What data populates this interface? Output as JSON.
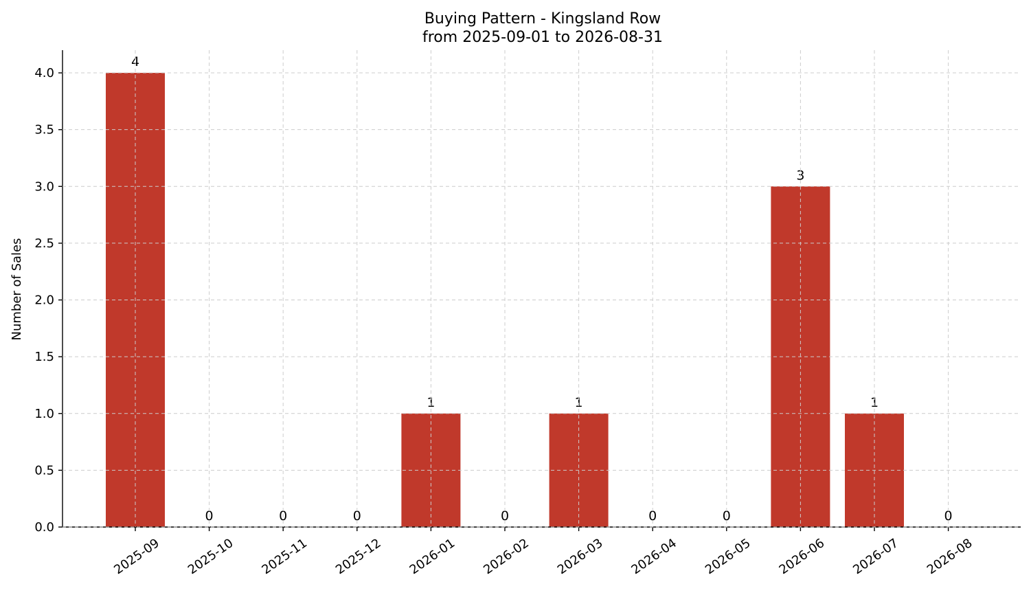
{
  "chart_data": {
    "type": "bar",
    "title": "Buying Pattern - Kingsland Row",
    "subtitle": "from 2025-09-01 to 2026-08-31",
    "ylabel": "Number of Sales",
    "categories": [
      "2025-09",
      "2025-10",
      "2025-11",
      "2025-12",
      "2026-01",
      "2026-02",
      "2026-03",
      "2026-04",
      "2026-05",
      "2026-06",
      "2026-07",
      "2026-08"
    ],
    "values": [
      4,
      0,
      0,
      0,
      1,
      0,
      1,
      0,
      0,
      3,
      1,
      0
    ],
    "data_labels": [
      "4",
      "0",
      "0",
      "0",
      "1",
      "0",
      "1",
      "0",
      "0",
      "3",
      "1",
      "0"
    ],
    "yticks": [
      "0.0",
      "0.5",
      "1.0",
      "1.5",
      "2.0",
      "2.5",
      "3.0",
      "3.5",
      "4.0"
    ],
    "ylim": [
      0,
      4.2
    ],
    "grid": true,
    "bar_color": "#c0392b"
  }
}
